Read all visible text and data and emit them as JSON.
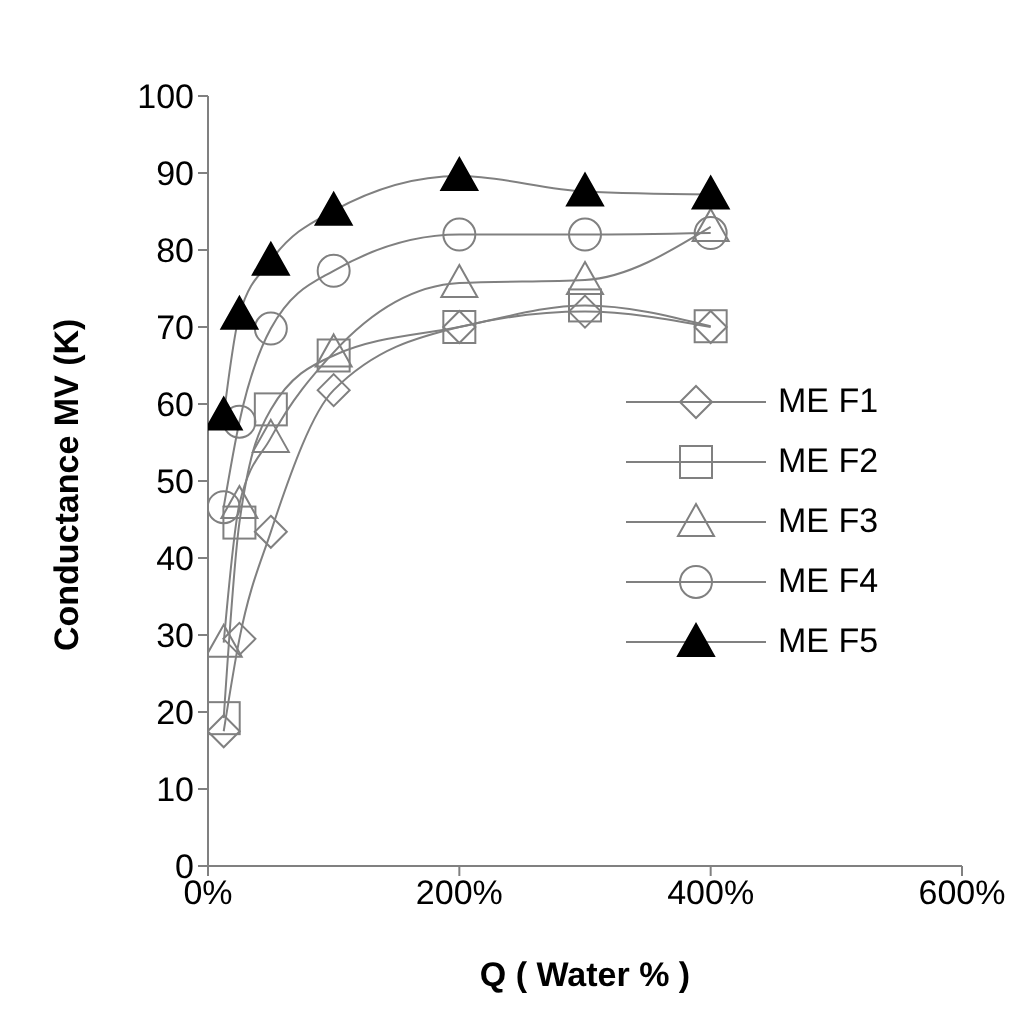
{
  "chart_data": {
    "type": "line",
    "xlabel": "Q ( Water % )",
    "ylabel": "Conductance MV (K)",
    "x": [
      12.5,
      25,
      50,
      100,
      200,
      300,
      400
    ],
    "series": [
      {
        "name": "ME F1",
        "color": "#808080",
        "marker": "diamond",
        "values": [
          17.5,
          29.5,
          43.4,
          61.8,
          70,
          72,
          70
        ]
      },
      {
        "name": "ME F2",
        "color": "#808080",
        "marker": "square",
        "values": [
          19.2,
          44.6,
          59.3,
          66.3,
          70,
          72.8,
          70.1
        ]
      },
      {
        "name": "ME F3",
        "color": "#808080",
        "marker": "triangle",
        "values": [
          29,
          47,
          55.6,
          66.7,
          75.7,
          76.1,
          83
        ]
      },
      {
        "name": "ME F4",
        "color": "#808080",
        "marker": "circle",
        "values": [
          46.6,
          57.7,
          69.8,
          77.3,
          82,
          82,
          82.2
        ]
      },
      {
        "name": "ME F5",
        "color": "#000000",
        "marker": "triangle-filled",
        "values": [
          58.5,
          71.6,
          78.6,
          85.1,
          89.6,
          87.6,
          87.2
        ]
      }
    ],
    "xlim": [
      0,
      600
    ],
    "xticks": [
      {
        "value": 0,
        "label": "0%"
      },
      {
        "value": 200,
        "label": "200%"
      },
      {
        "value": 400,
        "label": "400%"
      },
      {
        "value": 600,
        "label": "600%"
      }
    ],
    "ylim": [
      0,
      100
    ],
    "yticks": [
      0,
      10,
      20,
      30,
      40,
      50,
      60,
      70,
      80,
      90,
      100
    ],
    "grid": false,
    "legend": "right",
    "line_style": "solid"
  }
}
